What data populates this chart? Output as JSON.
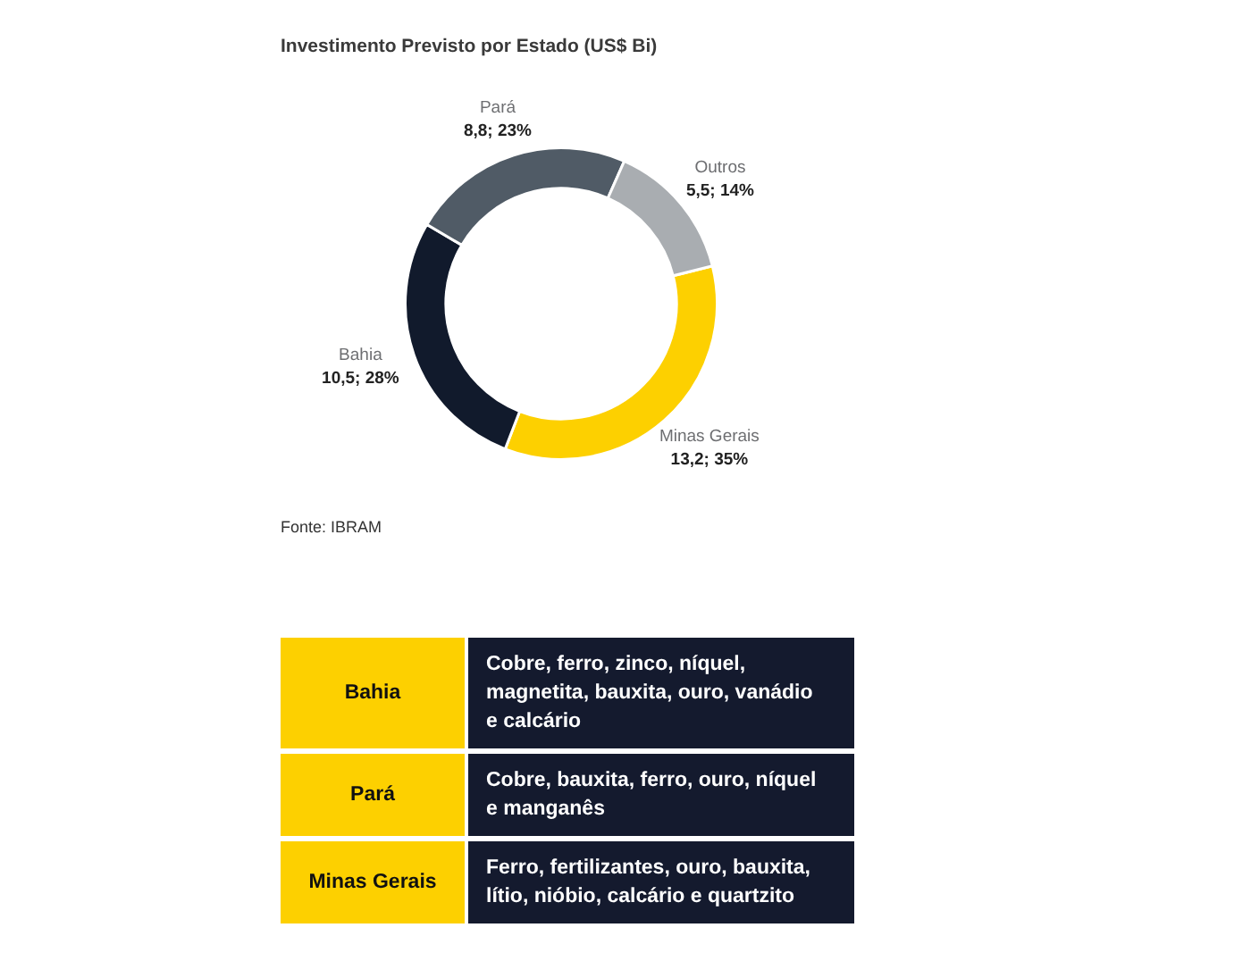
{
  "chart_data": [
    {
      "type": "donut",
      "title": "Investimento Previsto por Estado (US$ Bi)",
      "categories": [
        "Minas Gerais",
        "Bahia",
        "Pará",
        "Outros"
      ],
      "values": [
        13.2,
        10.5,
        8.8,
        5.5
      ],
      "colors": [
        "#fdd000",
        "#111a2c",
        "#505b66",
        "#a9adb1"
      ],
      "value_labels": [
        "13,2; 35%",
        "10,5; 28%",
        "8,8; 23%",
        "5,5; 14%"
      ],
      "annotations": [
        "Fonte: IBRAM"
      ]
    },
    {
      "type": "other",
      "annotations": [
        "Bahia",
        "Cobre, ferro, zinco, níquel, magnetita, bauxita, ouro, vanádio e calcário",
        "Pará",
        "Cobre, bauxita, ferro, ouro, níquel e manganês",
        "Minas Gerais",
        "Ferro, fertilizantes, ouro, bauxita, lítio, nióbio, calcário e quartzito"
      ]
    }
  ]
}
